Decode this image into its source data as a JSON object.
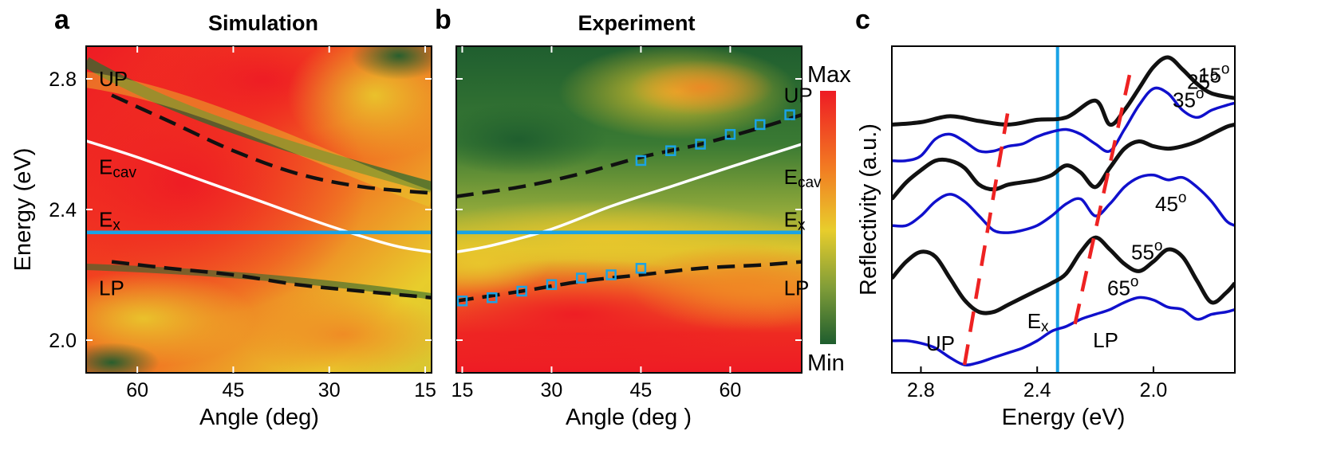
{
  "panel_labels": [
    "a",
    "b",
    "c"
  ],
  "colors": {
    "map_max": "#ee1b24",
    "map_mid": "#e8cd2c",
    "map_min": "#1e5d2e",
    "exciton_line": "#1aa3e6",
    "cavity_line": "#ffffff",
    "polariton_line": "#111111",
    "reflectivity_black": "#111111",
    "reflectivity_blue": "#1010cc",
    "guide_dash": "#ee2222",
    "marker": "#1aa3e6"
  },
  "colorbar": {
    "max_label": "Max",
    "min_label": "Min"
  },
  "chart_data": [
    {
      "type": "heatmap",
      "panel": "a",
      "title": "Simulation",
      "xlabel": "Angle (deg)",
      "ylabel": "Energy (eV)",
      "xlim": [
        68,
        14
      ],
      "ylim": [
        1.9,
        2.9
      ],
      "xticks": [
        60,
        45,
        30,
        15
      ],
      "yticks": [
        2.0,
        2.4,
        2.8
      ],
      "annotations": [
        {
          "text": "UP",
          "x": 66,
          "y": 2.8
        },
        {
          "text": "E",
          "sub": "cav",
          "x": 66,
          "y": 2.53
        },
        {
          "text": "E",
          "sub": "x",
          "x": 66,
          "y": 2.37
        },
        {
          "text": "LP",
          "x": 66,
          "y": 2.16
        }
      ],
      "lines": [
        {
          "name": "UP",
          "style": "dash",
          "x": [
            64,
            55,
            45,
            35,
            25,
            14
          ],
          "y": [
            2.75,
            2.67,
            2.58,
            2.51,
            2.47,
            2.45
          ]
        },
        {
          "name": "E_cav",
          "style": "solid-white",
          "x": [
            68,
            60,
            50,
            40,
            30,
            20,
            14
          ],
          "y": [
            2.61,
            2.56,
            2.49,
            2.42,
            2.35,
            2.29,
            2.27
          ]
        },
        {
          "name": "E_x",
          "style": "solid-blue",
          "x": [
            68,
            14
          ],
          "y": [
            2.33,
            2.33
          ]
        },
        {
          "name": "LP",
          "style": "dash",
          "x": [
            64,
            55,
            45,
            35,
            25,
            14
          ],
          "y": [
            2.24,
            2.22,
            2.2,
            2.17,
            2.15,
            2.13
          ]
        }
      ]
    },
    {
      "type": "heatmap",
      "panel": "b",
      "title": "Experiment",
      "xlabel": "Angle (deg  )",
      "ylabel": "",
      "xlim": [
        14,
        72
      ],
      "ylim": [
        1.9,
        2.9
      ],
      "xticks": [
        15,
        30,
        45,
        60
      ],
      "annotations": [
        {
          "text": "UP",
          "x": 69,
          "y": 2.75
        },
        {
          "text": "E",
          "sub": "cav",
          "x": 69,
          "y": 2.5
        },
        {
          "text": "E",
          "sub": "x",
          "x": 69,
          "y": 2.37
        },
        {
          "text": "LP",
          "x": 69,
          "y": 2.16
        }
      ],
      "lines": [
        {
          "name": "UP",
          "style": "dash",
          "x": [
            14,
            25,
            35,
            45,
            55,
            65,
            72
          ],
          "y": [
            2.44,
            2.47,
            2.51,
            2.56,
            2.6,
            2.65,
            2.69
          ]
        },
        {
          "name": "E_cav",
          "style": "solid-white",
          "x": [
            14,
            20,
            30,
            40,
            50,
            60,
            72
          ],
          "y": [
            2.27,
            2.29,
            2.34,
            2.41,
            2.47,
            2.53,
            2.6
          ]
        },
        {
          "name": "E_x",
          "style": "solid-blue",
          "x": [
            14,
            72
          ],
          "y": [
            2.33,
            2.33
          ]
        },
        {
          "name": "LP",
          "style": "dash",
          "x": [
            14,
            25,
            35,
            45,
            55,
            65,
            72
          ],
          "y": [
            2.12,
            2.15,
            2.18,
            2.2,
            2.22,
            2.23,
            2.24
          ]
        }
      ],
      "points": [
        {
          "name": "UP data",
          "x": [
            45,
            50,
            55,
            60,
            65,
            70
          ],
          "y": [
            2.55,
            2.58,
            2.6,
            2.63,
            2.66,
            2.69
          ]
        },
        {
          "name": "LP data",
          "x": [
            15,
            20,
            25,
            30,
            35,
            40,
            45
          ],
          "y": [
            2.12,
            2.13,
            2.15,
            2.17,
            2.19,
            2.2,
            2.22
          ]
        }
      ]
    },
    {
      "type": "line",
      "panel": "c",
      "title": "",
      "xlabel": "Energy (eV)",
      "ylabel": "Reflectivity (a.u.)",
      "xlim": [
        2.9,
        1.72
      ],
      "xticks": [
        2.8,
        2.4,
        2.0
      ],
      "vline": {
        "label": "E",
        "sub": "x",
        "x": 2.33
      },
      "annotations": [
        {
          "text": "UP",
          "x": 2.7
        },
        {
          "text": "LP",
          "x": 2.23
        }
      ],
      "series": [
        {
          "name": "15",
          "color": "black",
          "x": [
            2.9,
            2.8,
            2.7,
            2.6,
            2.5,
            2.4,
            2.3,
            2.2,
            2.15,
            2.1,
            2.05,
            2.0,
            1.95,
            1.9,
            1.85,
            1.8,
            1.72
          ],
          "y": [
            0.0,
            0.01,
            0.035,
            0.015,
            0.0,
            0.02,
            0.03,
            0.1,
            0.0,
            0.06,
            0.15,
            0.24,
            0.28,
            0.23,
            0.17,
            0.13,
            0.11
          ]
        },
        {
          "name": "25",
          "color": "blue",
          "x": [
            2.9,
            2.85,
            2.8,
            2.75,
            2.7,
            2.65,
            2.6,
            2.55,
            2.5,
            2.45,
            2.4,
            2.35,
            2.3,
            2.25,
            2.2,
            2.15,
            2.1,
            2.05,
            2.0,
            1.95,
            1.9,
            1.85,
            1.8,
            1.75,
            1.72
          ],
          "y": [
            -0.15,
            -0.15,
            -0.13,
            -0.06,
            -0.04,
            -0.07,
            -0.11,
            -0.11,
            -0.09,
            -0.08,
            -0.05,
            -0.03,
            -0.02,
            -0.04,
            -0.08,
            -0.11,
            -0.02,
            0.08,
            0.15,
            0.13,
            0.06,
            0.03,
            0.06,
            0.08,
            0.09
          ]
        },
        {
          "name": "35",
          "color": "black",
          "x": [
            2.9,
            2.85,
            2.8,
            2.75,
            2.7,
            2.65,
            2.6,
            2.55,
            2.5,
            2.45,
            2.4,
            2.35,
            2.3,
            2.25,
            2.2,
            2.15,
            2.1,
            2.05,
            2.0,
            1.95,
            1.9,
            1.85,
            1.8,
            1.75,
            1.72
          ],
          "y": [
            -0.31,
            -0.24,
            -0.19,
            -0.15,
            -0.15,
            -0.18,
            -0.25,
            -0.27,
            -0.25,
            -0.24,
            -0.23,
            -0.21,
            -0.17,
            -0.2,
            -0.26,
            -0.18,
            -0.1,
            -0.07,
            -0.09,
            -0.1,
            -0.09,
            -0.07,
            -0.04,
            -0.01,
            0.0
          ]
        },
        {
          "name": "45",
          "color": "blue",
          "x": [
            2.9,
            2.85,
            2.8,
            2.75,
            2.7,
            2.65,
            2.6,
            2.55,
            2.5,
            2.45,
            2.4,
            2.35,
            2.3,
            2.25,
            2.2,
            2.15,
            2.1,
            2.05,
            2.0,
            1.95,
            1.9,
            1.85,
            1.8,
            1.75,
            1.72
          ],
          "y": [
            -0.42,
            -0.42,
            -0.38,
            -0.32,
            -0.29,
            -0.32,
            -0.38,
            -0.44,
            -0.45,
            -0.44,
            -0.42,
            -0.38,
            -0.33,
            -0.31,
            -0.38,
            -0.33,
            -0.26,
            -0.22,
            -0.21,
            -0.23,
            -0.22,
            -0.26,
            -0.32,
            -0.4,
            -0.42
          ]
        },
        {
          "name": "55",
          "color": "black",
          "x": [
            2.9,
            2.85,
            2.8,
            2.75,
            2.7,
            2.65,
            2.6,
            2.55,
            2.5,
            2.45,
            2.4,
            2.35,
            2.3,
            2.25,
            2.2,
            2.15,
            2.1,
            2.05,
            2.0,
            1.95,
            1.9,
            1.85,
            1.8,
            1.75,
            1.72
          ],
          "y": [
            -0.64,
            -0.57,
            -0.53,
            -0.55,
            -0.64,
            -0.73,
            -0.78,
            -0.78,
            -0.75,
            -0.72,
            -0.69,
            -0.66,
            -0.62,
            -0.53,
            -0.47,
            -0.52,
            -0.58,
            -0.61,
            -0.57,
            -0.52,
            -0.55,
            -0.65,
            -0.74,
            -0.7,
            -0.66
          ]
        },
        {
          "name": "65",
          "color": "blue",
          "x": [
            2.9,
            2.85,
            2.8,
            2.75,
            2.7,
            2.65,
            2.6,
            2.55,
            2.5,
            2.45,
            2.4,
            2.35,
            2.3,
            2.25,
            2.2,
            2.15,
            2.1,
            2.05,
            2.0,
            1.95,
            1.9,
            1.85,
            1.8,
            1.75,
            1.72
          ],
          "y": [
            -0.9,
            -0.9,
            -0.91,
            -0.93,
            -0.97,
            -1.0,
            -0.99,
            -0.97,
            -0.95,
            -0.93,
            -0.9,
            -0.86,
            -0.84,
            -0.81,
            -0.79,
            -0.77,
            -0.74,
            -0.72,
            -0.73,
            -0.76,
            -0.77,
            -0.81,
            -0.79,
            -0.78,
            -0.77
          ]
        }
      ],
      "angle_labels": [
        {
          "text": "15",
          "sup": "o"
        },
        {
          "text": "25",
          "sup": "o"
        },
        {
          "text": "35",
          "sup": "o"
        },
        {
          "text": "45",
          "sup": "o"
        },
        {
          "text": "55",
          "sup": "o"
        },
        {
          "text": "65",
          "sup": "o"
        }
      ],
      "guides": [
        {
          "name": "UP",
          "x": [
            2.65,
            2.5
          ],
          "y": [
            -1.0,
            0.06
          ]
        },
        {
          "name": "LP",
          "x": [
            2.27,
            2.08
          ],
          "y": [
            -0.83,
            0.22
          ]
        }
      ]
    }
  ]
}
